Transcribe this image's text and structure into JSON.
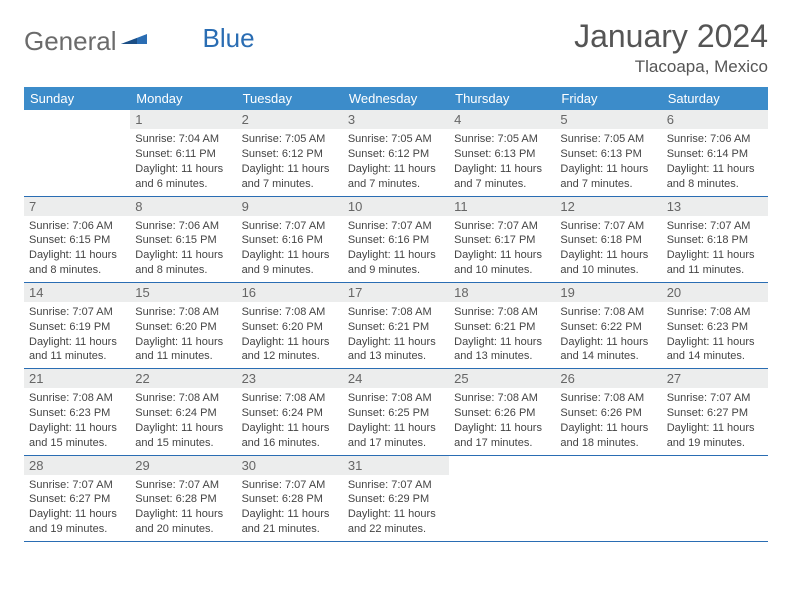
{
  "logo": {
    "text_a": "General",
    "text_b": "Blue"
  },
  "title": "January 2024",
  "location": "Tlacoapa, Mexico",
  "colors": {
    "header_bg": "#3c8cca",
    "header_text": "#ffffff",
    "rule": "#2a6db3",
    "daynum_bg": "#eceded",
    "body_text": "#444444"
  },
  "weekdays": [
    "Sunday",
    "Monday",
    "Tuesday",
    "Wednesday",
    "Thursday",
    "Friday",
    "Saturday"
  ],
  "start_offset": 1,
  "days": [
    {
      "n": 1,
      "sunrise": "7:04 AM",
      "sunset": "6:11 PM",
      "daylight": "11 hours and 6 minutes."
    },
    {
      "n": 2,
      "sunrise": "7:05 AM",
      "sunset": "6:12 PM",
      "daylight": "11 hours and 7 minutes."
    },
    {
      "n": 3,
      "sunrise": "7:05 AM",
      "sunset": "6:12 PM",
      "daylight": "11 hours and 7 minutes."
    },
    {
      "n": 4,
      "sunrise": "7:05 AM",
      "sunset": "6:13 PM",
      "daylight": "11 hours and 7 minutes."
    },
    {
      "n": 5,
      "sunrise": "7:05 AM",
      "sunset": "6:13 PM",
      "daylight": "11 hours and 7 minutes."
    },
    {
      "n": 6,
      "sunrise": "7:06 AM",
      "sunset": "6:14 PM",
      "daylight": "11 hours and 8 minutes."
    },
    {
      "n": 7,
      "sunrise": "7:06 AM",
      "sunset": "6:15 PM",
      "daylight": "11 hours and 8 minutes."
    },
    {
      "n": 8,
      "sunrise": "7:06 AM",
      "sunset": "6:15 PM",
      "daylight": "11 hours and 8 minutes."
    },
    {
      "n": 9,
      "sunrise": "7:07 AM",
      "sunset": "6:16 PM",
      "daylight": "11 hours and 9 minutes."
    },
    {
      "n": 10,
      "sunrise": "7:07 AM",
      "sunset": "6:16 PM",
      "daylight": "11 hours and 9 minutes."
    },
    {
      "n": 11,
      "sunrise": "7:07 AM",
      "sunset": "6:17 PM",
      "daylight": "11 hours and 10 minutes."
    },
    {
      "n": 12,
      "sunrise": "7:07 AM",
      "sunset": "6:18 PM",
      "daylight": "11 hours and 10 minutes."
    },
    {
      "n": 13,
      "sunrise": "7:07 AM",
      "sunset": "6:18 PM",
      "daylight": "11 hours and 11 minutes."
    },
    {
      "n": 14,
      "sunrise": "7:07 AM",
      "sunset": "6:19 PM",
      "daylight": "11 hours and 11 minutes."
    },
    {
      "n": 15,
      "sunrise": "7:08 AM",
      "sunset": "6:20 PM",
      "daylight": "11 hours and 11 minutes."
    },
    {
      "n": 16,
      "sunrise": "7:08 AM",
      "sunset": "6:20 PM",
      "daylight": "11 hours and 12 minutes."
    },
    {
      "n": 17,
      "sunrise": "7:08 AM",
      "sunset": "6:21 PM",
      "daylight": "11 hours and 13 minutes."
    },
    {
      "n": 18,
      "sunrise": "7:08 AM",
      "sunset": "6:21 PM",
      "daylight": "11 hours and 13 minutes."
    },
    {
      "n": 19,
      "sunrise": "7:08 AM",
      "sunset": "6:22 PM",
      "daylight": "11 hours and 14 minutes."
    },
    {
      "n": 20,
      "sunrise": "7:08 AM",
      "sunset": "6:23 PM",
      "daylight": "11 hours and 14 minutes."
    },
    {
      "n": 21,
      "sunrise": "7:08 AM",
      "sunset": "6:23 PM",
      "daylight": "11 hours and 15 minutes."
    },
    {
      "n": 22,
      "sunrise": "7:08 AM",
      "sunset": "6:24 PM",
      "daylight": "11 hours and 15 minutes."
    },
    {
      "n": 23,
      "sunrise": "7:08 AM",
      "sunset": "6:24 PM",
      "daylight": "11 hours and 16 minutes."
    },
    {
      "n": 24,
      "sunrise": "7:08 AM",
      "sunset": "6:25 PM",
      "daylight": "11 hours and 17 minutes."
    },
    {
      "n": 25,
      "sunrise": "7:08 AM",
      "sunset": "6:26 PM",
      "daylight": "11 hours and 17 minutes."
    },
    {
      "n": 26,
      "sunrise": "7:08 AM",
      "sunset": "6:26 PM",
      "daylight": "11 hours and 18 minutes."
    },
    {
      "n": 27,
      "sunrise": "7:07 AM",
      "sunset": "6:27 PM",
      "daylight": "11 hours and 19 minutes."
    },
    {
      "n": 28,
      "sunrise": "7:07 AM",
      "sunset": "6:27 PM",
      "daylight": "11 hours and 19 minutes."
    },
    {
      "n": 29,
      "sunrise": "7:07 AM",
      "sunset": "6:28 PM",
      "daylight": "11 hours and 20 minutes."
    },
    {
      "n": 30,
      "sunrise": "7:07 AM",
      "sunset": "6:28 PM",
      "daylight": "11 hours and 21 minutes."
    },
    {
      "n": 31,
      "sunrise": "7:07 AM",
      "sunset": "6:29 PM",
      "daylight": "11 hours and 22 minutes."
    }
  ],
  "labels": {
    "sunrise": "Sunrise:",
    "sunset": "Sunset:",
    "daylight": "Daylight:"
  }
}
